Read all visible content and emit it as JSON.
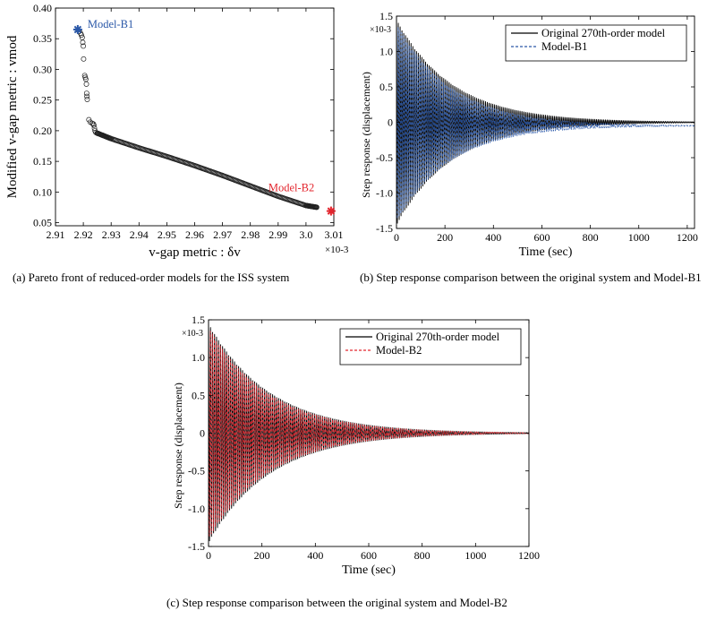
{
  "figure": {
    "captions": {
      "a": "(a) Pareto front of reduced-order models for the ISS system",
      "b": "(b) Step response comparison between the original system and Model-B1",
      "c": "(c) Step response comparison between the original system and Model-B2"
    }
  },
  "colors": {
    "b1": "#2b58a8",
    "b2": "#e3262e",
    "original": "#000000",
    "axis": "#000000"
  },
  "chart_data": [
    {
      "id": "a",
      "type": "scatter",
      "title": "",
      "xlabel": "v-gap metric : δv",
      "ylabel": "Modified v-gap metric : vmod",
      "x_exponent": "×10-3",
      "xlim": [
        2.91,
        3.01
      ],
      "ylim": [
        0.045,
        0.4
      ],
      "xticks": [
        2.91,
        2.92,
        2.93,
        2.94,
        2.95,
        2.96,
        2.97,
        2.98,
        2.99,
        3.0,
        3.01
      ],
      "xtick_labels": [
        "2.91",
        "2.92",
        "2.93",
        "2.94",
        "2.95",
        "2.96",
        "2.97",
        "2.98",
        "2.99",
        "3.0",
        "3.01"
      ],
      "yticks": [
        0.05,
        0.1,
        0.15,
        0.2,
        0.25,
        0.3,
        0.35,
        0.4
      ],
      "ytick_labels": [
        "0.05",
        "0.10",
        "0.15",
        "0.20",
        "0.25",
        "0.30",
        "0.35",
        "0.40"
      ],
      "cluster_points": [
        [
          2.9185,
          0.362
        ],
        [
          2.919,
          0.359
        ],
        [
          2.9193,
          0.356
        ],
        [
          2.9196,
          0.352
        ],
        [
          2.9198,
          0.344
        ],
        [
          2.92,
          0.338
        ],
        [
          2.9201,
          0.317
        ],
        [
          2.9205,
          0.29
        ],
        [
          2.9207,
          0.287
        ],
        [
          2.9209,
          0.284
        ],
        [
          2.9211,
          0.276
        ],
        [
          2.9212,
          0.261
        ],
        [
          2.9213,
          0.256
        ],
        [
          2.9214,
          0.251
        ],
        [
          2.922,
          0.218
        ],
        [
          2.9225,
          0.214
        ],
        [
          2.9232,
          0.212
        ],
        [
          2.9236,
          0.211
        ],
        [
          2.9238,
          0.209
        ],
        [
          2.924,
          0.204
        ],
        [
          2.9242,
          0.2
        ],
        [
          2.9245,
          0.197
        ],
        [
          2.925,
          0.196
        ]
      ],
      "front_segments": [
        {
          "x": [
            2.925,
            2.93,
            2.94,
            2.95,
            2.96,
            2.97,
            2.98,
            2.99,
            3.0,
            3.004
          ],
          "y": [
            0.196,
            0.187,
            0.172,
            0.158,
            0.143,
            0.127,
            0.11,
            0.093,
            0.078,
            0.075
          ]
        }
      ],
      "highlights": [
        {
          "name": "Model-B1",
          "x": 2.918,
          "y": 0.365,
          "color_key": "b1"
        },
        {
          "name": "Model-B2",
          "x": 3.009,
          "y": 0.069,
          "color_key": "b2"
        }
      ]
    },
    {
      "id": "b",
      "type": "line",
      "title": "",
      "xlabel": "Time (sec)",
      "ylabel": "Step response (displacement)",
      "y_exponent": "×10-3",
      "xlim": [
        0,
        1230
      ],
      "ylim": [
        -1.5,
        1.5
      ],
      "xticks": [
        0,
        200,
        400,
        600,
        800,
        1000,
        1200
      ],
      "xtick_labels": [
        "0",
        "200",
        "400",
        "600",
        "800",
        "1000",
        "1200"
      ],
      "yticks": [
        -1.5,
        -1.0,
        -0.5,
        0,
        0.5,
        1.0,
        1.5
      ],
      "ytick_labels": [
        "-1.5",
        "-1.0",
        "-0.5",
        "0",
        "0.5",
        "1.0",
        "1.5"
      ],
      "legend_position": "top-right",
      "series": [
        {
          "name": "Original 270th-order model",
          "style": "solid",
          "color_key": "original",
          "amplitude": 1.45,
          "decay_time": 230,
          "period": 7.5,
          "steady_state": 0.0
        },
        {
          "name": "Model-B1",
          "style": "dashed",
          "color_key": "b1",
          "amplitude": 1.4,
          "decay_time": 225,
          "period": 7.5,
          "steady_state": -0.05
        }
      ]
    },
    {
      "id": "c",
      "type": "line",
      "title": "",
      "xlabel": "Time (sec)",
      "ylabel": "Step response (displacement)",
      "y_exponent": "×10-3",
      "xlim": [
        0,
        1200
      ],
      "ylim": [
        -1.5,
        1.5
      ],
      "xticks": [
        0,
        200,
        400,
        600,
        800,
        1000,
        1200
      ],
      "xtick_labels": [
        "0",
        "200",
        "400",
        "600",
        "800",
        "1000",
        "1200"
      ],
      "yticks": [
        -1.5,
        -1.0,
        -0.5,
        0,
        0.5,
        1.0,
        1.5
      ],
      "ytick_labels": [
        "-1.5",
        "-1.0",
        "-0.5",
        "0",
        "0.5",
        "1.0",
        "1.5"
      ],
      "legend_position": "top-right",
      "series": [
        {
          "name": "Original 270th-order model",
          "style": "solid",
          "color_key": "original",
          "amplitude": 1.45,
          "decay_time": 230,
          "period": 7.5,
          "steady_state": 0.0
        },
        {
          "name": "Model-B2",
          "style": "dashed",
          "color_key": "b2",
          "amplitude": 1.4,
          "decay_time": 228,
          "period": 7.5,
          "steady_state": 0.0
        }
      ]
    }
  ]
}
